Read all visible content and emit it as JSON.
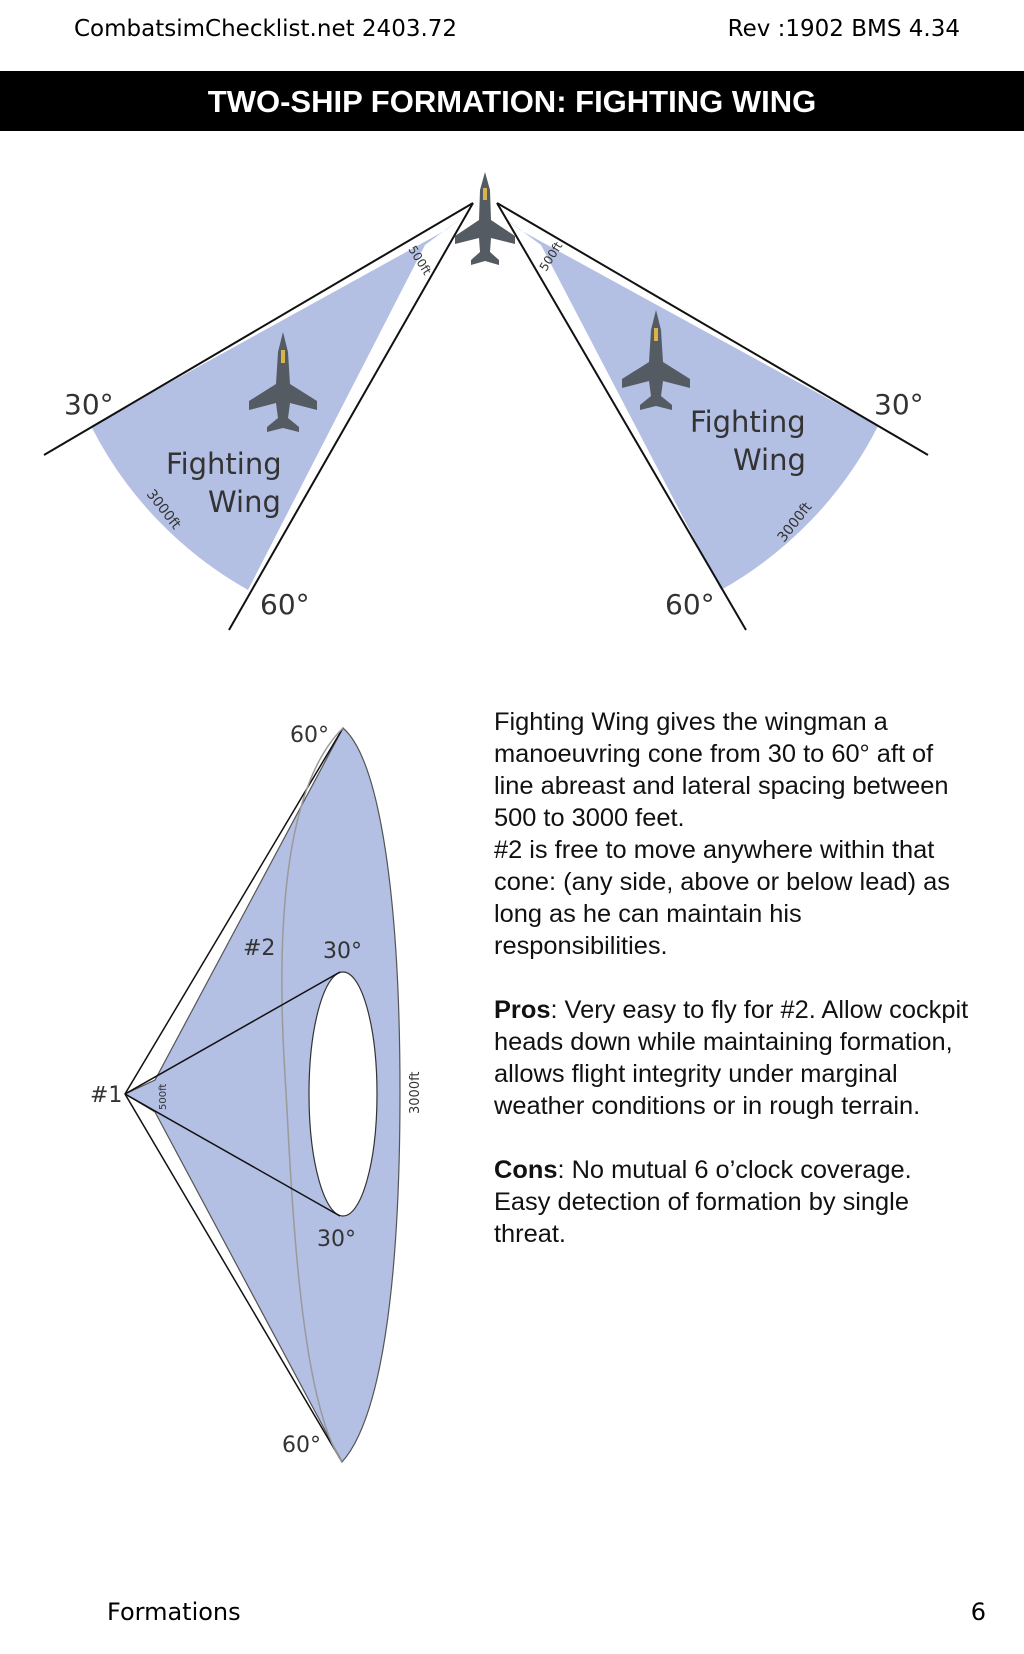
{
  "header": {
    "left": "CombatsimChecklist.net 2403.72",
    "right": "Rev :1902 BMS 4.34"
  },
  "title": "TWO-SHIP FORMATION: FIGHTING WING",
  "figure_top": {
    "angle_30_left": "30°",
    "angle_30_right": "30°",
    "angle_60_left": "60°",
    "angle_60_right": "60°",
    "label_left_line1": "Fighting",
    "label_left_line2": "Wing",
    "label_right_line1": "Fighting",
    "label_right_line2": "Wing",
    "dist_500_left": "500ft",
    "dist_500_right": "500ft",
    "dist_3000_left": "3000ft",
    "dist_3000_right": "3000ft",
    "cone_color": "#b3bfe3"
  },
  "figure_side": {
    "angle_60_top": "60°",
    "angle_30_top": "30°",
    "angle_30_bottom": "30°",
    "angle_60_bottom": "60°",
    "lead_label": "#1",
    "wing_label": "#2",
    "dist_500": "500ft",
    "dist_3000": "3000ft"
  },
  "description": {
    "intro": "Fighting Wing gives the wingman a manoeuvring cone from 30 to 60° aft of line abreast and lateral spacing between 500 to 3000 feet.",
    "freedom": "#2 is free to move anywhere within that cone: (any side, above or below lead) as long as he can maintain his responsibilities.",
    "pros_label": "Pros",
    "pros_text": ": Very easy to fly for #2. Allow cockpit heads down while maintaining formation, allows flight integrity under marginal weather conditions or in rough terrain.",
    "cons_label": "Cons",
    "cons_text": ": No mutual 6 o’clock coverage. Easy detection of formation by single threat."
  },
  "footer": {
    "section": "Formations",
    "page": "6"
  }
}
